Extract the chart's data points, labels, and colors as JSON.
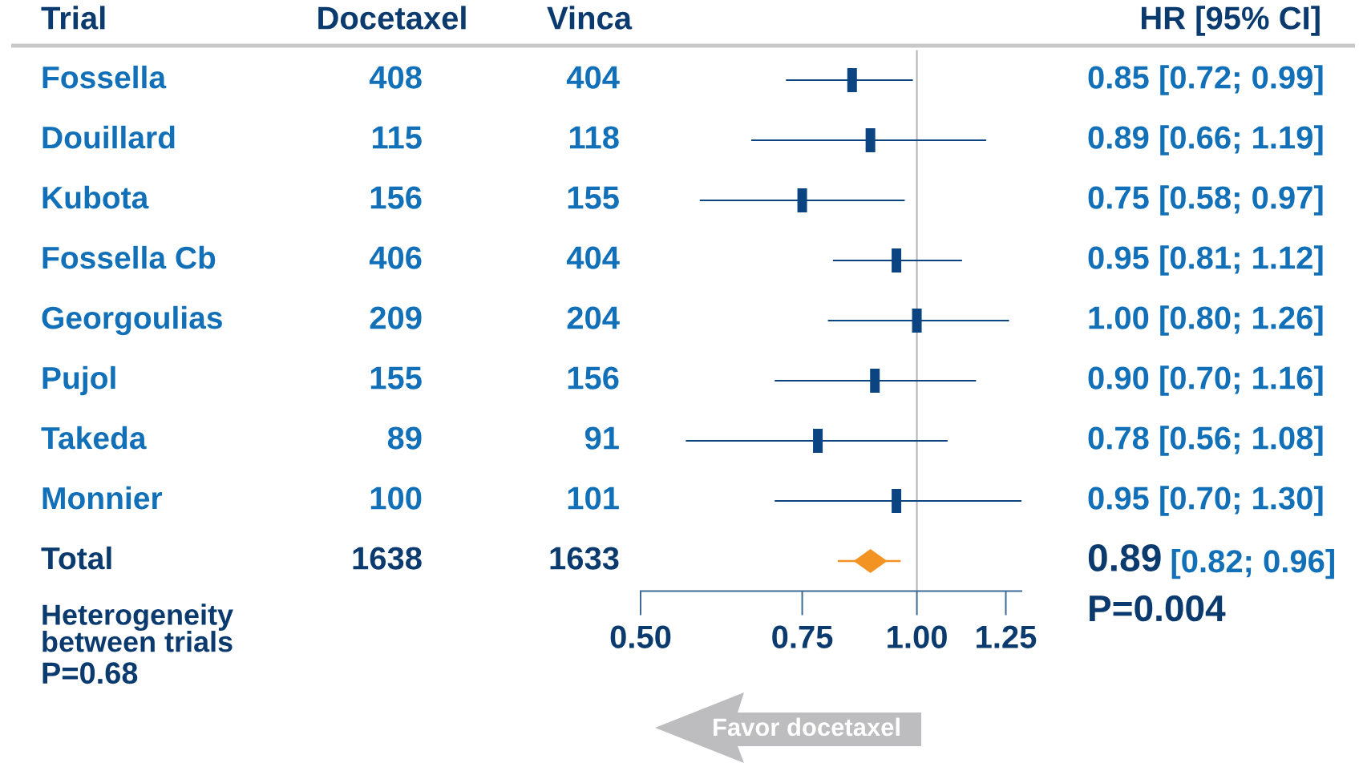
{
  "chart_data": [
    {
      "type": "other",
      "categories": [
        "Fossella",
        "Douillard",
        "Kubota",
        "Fossella Cb",
        "Georgoulias",
        "Pujol",
        "Takeda",
        "Monnier",
        "Total"
      ],
      "series": [
        {
          "name": "Docetaxel",
          "colors": [
            "#1170b8",
            "#1170b8",
            "#1170b8",
            "#1170b8",
            "#1170b8",
            "#1170b8",
            "#1170b8",
            "#1170b8",
            "#0b3a6e"
          ],
          "values": [
            408,
            115,
            156,
            406,
            209,
            155,
            89,
            100,
            1638
          ]
        },
        {
          "name": "Vinca",
          "colors": [
            "#1170b8",
            "#1170b8",
            "#1170b8",
            "#1170b8",
            "#1170b8",
            "#1170b8",
            "#1170b8",
            "#1170b8",
            "#0b3a6e"
          ],
          "values": [
            404,
            118,
            155,
            404,
            204,
            156,
            91,
            101,
            1633
          ]
        }
      ],
      "data_labels": true,
      "annotations": [
        "Trial",
        "Heterogeneity between trials",
        "P=0.68"
      ]
    },
    {
      "type": "scatter",
      "orientation": "horizontal",
      "categories": [
        null,
        null,
        null,
        null,
        null,
        null,
        null,
        null,
        null
      ],
      "series": [
        {
          "color": "#0b4481",
          "marker": "square",
          "values": [
            0.85,
            0.89,
            0.75,
            0.95,
            1.0,
            0.9,
            0.78,
            0.95,
            null
          ],
          "errors": [
            [
              0.72,
              0.99
            ],
            [
              0.66,
              1.19
            ],
            [
              0.58,
              0.97
            ],
            [
              0.81,
              1.12
            ],
            [
              0.8,
              1.26
            ],
            [
              0.7,
              1.16
            ],
            [
              0.56,
              1.08
            ],
            [
              0.7,
              1.3
            ],
            null
          ],
          "value_labels": [
            "0.85 [0.72; 0.99]",
            "0.89 [0.66; 1.19]",
            "0.75 [0.58; 0.97]",
            "0.95 [0.81; 1.12]",
            "1.00 [0.80; 1.26]",
            "0.90 [0.70; 1.16]",
            "0.78 [0.56; 1.08]",
            "0.95 [0.70; 1.30]",
            null
          ]
        },
        {
          "color": "#f39324",
          "marker": "diamond",
          "values": [
            null,
            null,
            null,
            null,
            null,
            null,
            null,
            null,
            0.89
          ],
          "errors": [
            null,
            null,
            null,
            null,
            null,
            null,
            null,
            null,
            [
              0.82,
              0.96
            ]
          ]
        }
      ],
      "xlim": [
        0.5,
        1.3
      ],
      "xticks": [
        {
          "value": 0.5,
          "label": "0.50"
        },
        {
          "value": 0.75,
          "label": "0.75"
        },
        {
          "value": 1,
          "label": "1.00"
        },
        {
          "value": 1.25,
          "label": "1.25"
        }
      ],
      "log": "x",
      "tick_labels": "x",
      "ref_lines": [
        {
          "axis": "x",
          "value": 1,
          "color": "#b3b3b3"
        }
      ],
      "annotations": [
        "HR [95% CI]",
        "0.89 [0.82; 0.96]",
        "P=0.004",
        "Favor docetaxel"
      ]
    }
  ]
}
